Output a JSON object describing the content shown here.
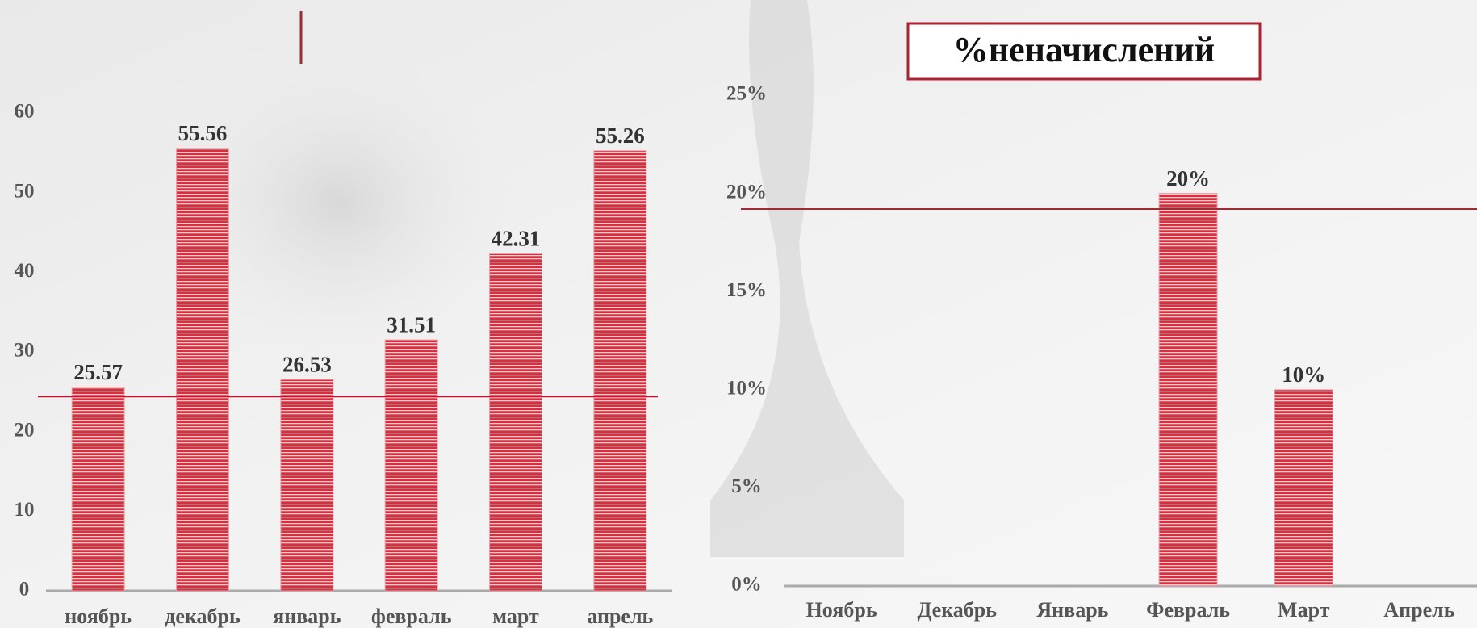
{
  "chart_data": [
    {
      "type": "bar",
      "categories": [
        "ноябрь",
        "декабрь",
        "январь",
        "февраль",
        "март",
        "апрель"
      ],
      "values": [
        25.57,
        55.56,
        26.53,
        31.51,
        42.31,
        55.26
      ],
      "color": "#d6303f",
      "ylim": [
        0,
        60
      ],
      "yticks": [
        0,
        10,
        20,
        30,
        40,
        50,
        60
      ],
      "reference_line": 24.4,
      "reference_color": "#c8102e"
    },
    {
      "type": "bar",
      "title": "%неначислений",
      "categories": [
        "Ноябрь",
        "Декабрь",
        "Январь",
        "Февраль",
        "Март",
        "Апрель"
      ],
      "values": [
        null,
        null,
        null,
        20,
        10,
        null
      ],
      "value_labels": [
        null,
        null,
        null,
        "20%",
        "10%",
        null
      ],
      "color": "#d6303f",
      "ylim": [
        0,
        25
      ],
      "yticks": [
        {
          "value": 0,
          "label": "0%"
        },
        {
          "value": 5,
          "label": "5%"
        },
        {
          "value": 10,
          "label": "10%"
        },
        {
          "value": 15,
          "label": "15%"
        },
        {
          "value": 20,
          "label": "20%"
        },
        {
          "value": 25,
          "label": "25%"
        }
      ],
      "reference_line": 19.2,
      "reference_color": "#9e2a33"
    }
  ]
}
